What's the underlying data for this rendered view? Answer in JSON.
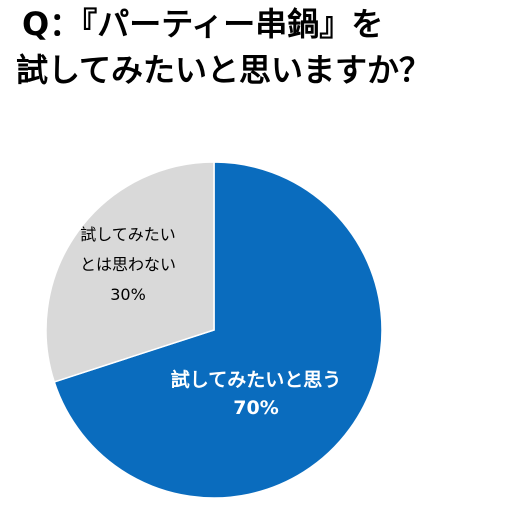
{
  "title_line1": "Q：『パーティー串鍋』を",
  "title_line2": "試してみたいと思いますか？",
  "chart_data": {
    "type": "pie",
    "title": "Q：『パーティー串鍋』を試してみたいと思いますか？",
    "slices": [
      {
        "label_lines": [
          "試してみたいと思う"
        ],
        "value": 70,
        "value_label": "70%",
        "color": "#0a6cbe",
        "text_color": "#ffffff"
      },
      {
        "label_lines": [
          "試してみたい",
          "とは思わない"
        ],
        "value": 30,
        "value_label": "30%",
        "color": "#d9d9d9",
        "text_color": "#000000"
      }
    ]
  }
}
